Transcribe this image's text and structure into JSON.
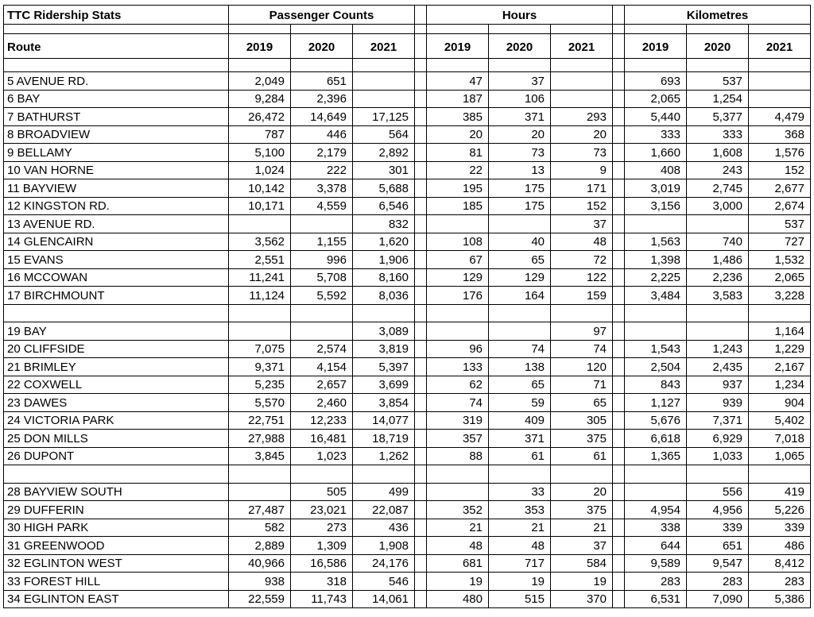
{
  "title": "TTC Ridership Stats",
  "route_header": "Route",
  "groups": [
    {
      "label": "Passenger Counts"
    },
    {
      "label": "Hours"
    },
    {
      "label": "Kilometres"
    }
  ],
  "years": [
    "2019",
    "2020",
    "2021"
  ],
  "rows": [
    {
      "route": "5 AVENUE RD.",
      "passenger_counts": [
        "2,049",
        "651",
        ""
      ],
      "hours": [
        "47",
        "37",
        ""
      ],
      "kilometres": [
        "693",
        "537",
        ""
      ]
    },
    {
      "route": "6 BAY",
      "passenger_counts": [
        "9,284",
        "2,396",
        ""
      ],
      "hours": [
        "187",
        "106",
        ""
      ],
      "kilometres": [
        "2,065",
        "1,254",
        ""
      ]
    },
    {
      "route": "7 BATHURST",
      "passenger_counts": [
        "26,472",
        "14,649",
        "17,125"
      ],
      "hours": [
        "385",
        "371",
        "293"
      ],
      "kilometres": [
        "5,440",
        "5,377",
        "4,479"
      ]
    },
    {
      "route": "8 BROADVIEW",
      "passenger_counts": [
        "787",
        "446",
        "564"
      ],
      "hours": [
        "20",
        "20",
        "20"
      ],
      "kilometres": [
        "333",
        "333",
        "368"
      ]
    },
    {
      "route": "9 BELLAMY",
      "passenger_counts": [
        "5,100",
        "2,179",
        "2,892"
      ],
      "hours": [
        "81",
        "73",
        "73"
      ],
      "kilometres": [
        "1,660",
        "1,608",
        "1,576"
      ]
    },
    {
      "route": "10 VAN HORNE",
      "passenger_counts": [
        "1,024",
        "222",
        "301"
      ],
      "hours": [
        "22",
        "13",
        "9"
      ],
      "kilometres": [
        "408",
        "243",
        "152"
      ]
    },
    {
      "route": "11 BAYVIEW",
      "passenger_counts": [
        "10,142",
        "3,378",
        "5,688"
      ],
      "hours": [
        "195",
        "175",
        "171"
      ],
      "kilometres": [
        "3,019",
        "2,745",
        "2,677"
      ]
    },
    {
      "route": "12 KINGSTON RD.",
      "passenger_counts": [
        "10,171",
        "4,559",
        "6,546"
      ],
      "hours": [
        "185",
        "175",
        "152"
      ],
      "kilometres": [
        "3,156",
        "3,000",
        "2,674"
      ]
    },
    {
      "route": "13 AVENUE RD.",
      "passenger_counts": [
        "",
        "",
        "832"
      ],
      "hours": [
        "",
        "",
        "37"
      ],
      "kilometres": [
        "",
        "",
        "537"
      ]
    },
    {
      "route": "14 GLENCAIRN",
      "passenger_counts": [
        "3,562",
        "1,155",
        "1,620"
      ],
      "hours": [
        "108",
        "40",
        "48"
      ],
      "kilometres": [
        "1,563",
        "740",
        "727"
      ]
    },
    {
      "route": "15 EVANS",
      "passenger_counts": [
        "2,551",
        "996",
        "1,906"
      ],
      "hours": [
        "67",
        "65",
        "72"
      ],
      "kilometres": [
        "1,398",
        "1,486",
        "1,532"
      ]
    },
    {
      "route": "16 MCCOWAN",
      "passenger_counts": [
        "11,241",
        "5,708",
        "8,160"
      ],
      "hours": [
        "129",
        "129",
        "122"
      ],
      "kilometres": [
        "2,225",
        "2,236",
        "2,065"
      ]
    },
    {
      "route": "17 BIRCHMOUNT",
      "passenger_counts": [
        "11,124",
        "5,592",
        "8,036"
      ],
      "hours": [
        "176",
        "164",
        "159"
      ],
      "kilometres": [
        "3,484",
        "3,583",
        "3,228"
      ]
    },
    {
      "route": "",
      "passenger_counts": [
        "",
        "",
        ""
      ],
      "hours": [
        "",
        "",
        ""
      ],
      "kilometres": [
        "",
        "",
        ""
      ]
    },
    {
      "route": "19 BAY",
      "passenger_counts": [
        "",
        "",
        "3,089"
      ],
      "hours": [
        "",
        "",
        "97"
      ],
      "kilometres": [
        "",
        "",
        "1,164"
      ]
    },
    {
      "route": "20 CLIFFSIDE",
      "passenger_counts": [
        "7,075",
        "2,574",
        "3,819"
      ],
      "hours": [
        "96",
        "74",
        "74"
      ],
      "kilometres": [
        "1,543",
        "1,243",
        "1,229"
      ]
    },
    {
      "route": "21 BRIMLEY",
      "passenger_counts": [
        "9,371",
        "4,154",
        "5,397"
      ],
      "hours": [
        "133",
        "138",
        "120"
      ],
      "kilometres": [
        "2,504",
        "2,435",
        "2,167"
      ]
    },
    {
      "route": "22 COXWELL",
      "passenger_counts": [
        "5,235",
        "2,657",
        "3,699"
      ],
      "hours": [
        "62",
        "65",
        "71"
      ],
      "kilometres": [
        "843",
        "937",
        "1,234"
      ]
    },
    {
      "route": "23 DAWES",
      "passenger_counts": [
        "5,570",
        "2,460",
        "3,854"
      ],
      "hours": [
        "74",
        "59",
        "65"
      ],
      "kilometres": [
        "1,127",
        "939",
        "904"
      ]
    },
    {
      "route": "24 VICTORIA PARK",
      "passenger_counts": [
        "22,751",
        "12,233",
        "14,077"
      ],
      "hours": [
        "319",
        "409",
        "305"
      ],
      "kilometres": [
        "5,676",
        "7,371",
        "5,402"
      ]
    },
    {
      "route": "25 DON MILLS",
      "passenger_counts": [
        "27,988",
        "16,481",
        "18,719"
      ],
      "hours": [
        "357",
        "371",
        "375"
      ],
      "kilometres": [
        "6,618",
        "6,929",
        "7,018"
      ]
    },
    {
      "route": "26 DUPONT",
      "passenger_counts": [
        "3,845",
        "1,023",
        "1,262"
      ],
      "hours": [
        "88",
        "61",
        "61"
      ],
      "kilometres": [
        "1,365",
        "1,033",
        "1,065"
      ]
    },
    {
      "route": "",
      "passenger_counts": [
        "",
        "",
        ""
      ],
      "hours": [
        "",
        "",
        ""
      ],
      "kilometres": [
        "",
        "",
        ""
      ]
    },
    {
      "route": "28 BAYVIEW SOUTH",
      "passenger_counts": [
        "",
        "505",
        "499"
      ],
      "hours": [
        "",
        "33",
        "20"
      ],
      "kilometres": [
        "",
        "556",
        "419"
      ]
    },
    {
      "route": "29 DUFFERIN",
      "passenger_counts": [
        "27,487",
        "23,021",
        "22,087"
      ],
      "hours": [
        "352",
        "353",
        "375"
      ],
      "kilometres": [
        "4,954",
        "4,956",
        "5,226"
      ]
    },
    {
      "route": "30 HIGH PARK",
      "passenger_counts": [
        "582",
        "273",
        "436"
      ],
      "hours": [
        "21",
        "21",
        "21"
      ],
      "kilometres": [
        "338",
        "339",
        "339"
      ]
    },
    {
      "route": "31 GREENWOOD",
      "passenger_counts": [
        "2,889",
        "1,309",
        "1,908"
      ],
      "hours": [
        "48",
        "48",
        "37"
      ],
      "kilometres": [
        "644",
        "651",
        "486"
      ]
    },
    {
      "route": "32 EGLINTON WEST",
      "passenger_counts": [
        "40,966",
        "16,586",
        "24,176"
      ],
      "hours": [
        "681",
        "717",
        "584"
      ],
      "kilometres": [
        "9,589",
        "9,547",
        "8,412"
      ]
    },
    {
      "route": "33 FOREST HILL",
      "passenger_counts": [
        "938",
        "318",
        "546"
      ],
      "hours": [
        "19",
        "19",
        "19"
      ],
      "kilometres": [
        "283",
        "283",
        "283"
      ]
    },
    {
      "route": "34 EGLINTON EAST",
      "passenger_counts": [
        "22,559",
        "11,743",
        "14,061"
      ],
      "hours": [
        "480",
        "515",
        "370"
      ],
      "kilometres": [
        "6,531",
        "7,090",
        "5,386"
      ]
    }
  ]
}
